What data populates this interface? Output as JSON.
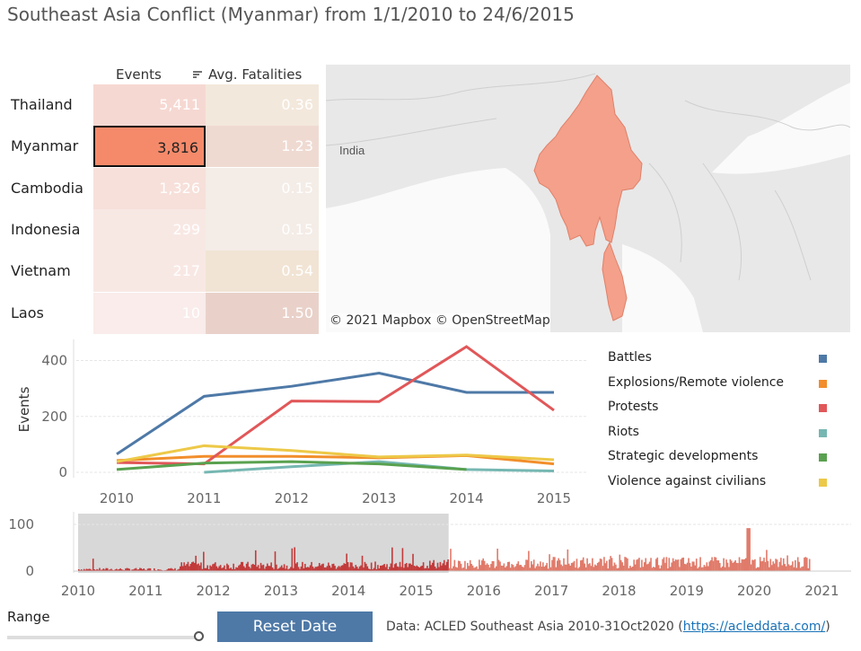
{
  "title": "Southeast Asia Conflict (Myanmar) from 1/1/2010 to 24/6/2015",
  "table": {
    "col_events": "Events",
    "col_fatalities": "Avg. Fatalities",
    "rows": [
      {
        "country": "Thailand",
        "events": "5,411",
        "fatalities": "0.36"
      },
      {
        "country": "Myanmar",
        "events": "3,816",
        "fatalities": "1.23"
      },
      {
        "country": "Cambodia",
        "events": "1,326",
        "fatalities": "0.15"
      },
      {
        "country": "Indonesia",
        "events": "299",
        "fatalities": "0.15"
      },
      {
        "country": "Vietnam",
        "events": "217",
        "fatalities": "0.54"
      },
      {
        "country": "Laos",
        "events": "10",
        "fatalities": "1.50"
      }
    ],
    "selected": "Myanmar",
    "sort_icon": "sort-icon"
  },
  "map": {
    "label": "India",
    "attribution": "© 2021 Mapbox © OpenStreetMap",
    "highlight_color": "#f4a08a"
  },
  "chart_data": [
    {
      "type": "line",
      "ylabel": "Events",
      "x": [
        2010,
        2011,
        2012,
        2013,
        2014,
        2015
      ],
      "x_ticks": [
        "2010",
        "2011",
        "2012",
        "2013",
        "2014",
        "2015"
      ],
      "y_ticks": [
        "0",
        "200",
        "400"
      ],
      "ylim": [
        0,
        450
      ],
      "grid": true,
      "legend_position": "right",
      "series": [
        {
          "name": "Battles",
          "color": "#4e79a7",
          "values": [
            65,
            272,
            308,
            355,
            286,
            286
          ]
        },
        {
          "name": "Explosions/Remote violence",
          "color": "#f28e2b",
          "values": [
            42,
            57,
            57,
            52,
            60,
            30
          ]
        },
        {
          "name": "Protests",
          "color": "#e15759",
          "values": [
            35,
            30,
            255,
            253,
            450,
            222
          ]
        },
        {
          "name": "Riots",
          "color": "#76b7b2",
          "values": [
            null,
            0,
            20,
            38,
            10,
            5
          ]
        },
        {
          "name": "Strategic developments",
          "color": "#59a14f",
          "values": [
            10,
            33,
            38,
            30,
            10,
            null
          ]
        },
        {
          "name": "Violence against civilians",
          "color": "#edc948",
          "values": [
            38,
            95,
            78,
            55,
            62,
            45
          ]
        }
      ]
    },
    {
      "type": "bar",
      "title": "",
      "x_ticks": [
        "2010",
        "2011",
        "2012",
        "2013",
        "2014",
        "2015",
        "2016",
        "2017",
        "2018",
        "2019",
        "2020",
        "2021"
      ],
      "y_ticks": [
        "0",
        "100"
      ],
      "ylim": [
        0,
        100
      ],
      "x_range": [
        2010,
        2021.7
      ],
      "selected_range": [
        2010,
        2015.48
      ],
      "bar_color": "#e07a6a",
      "selection_color": "#d8d8d8"
    }
  ],
  "bottom": {
    "range_label": "Range",
    "reset_label": "Reset Date",
    "source_prefix": "Data: ACLED Southeast Asia 2010-31Oct2020 (",
    "source_link": "https://acleddata.com/",
    "source_suffix": ")"
  }
}
